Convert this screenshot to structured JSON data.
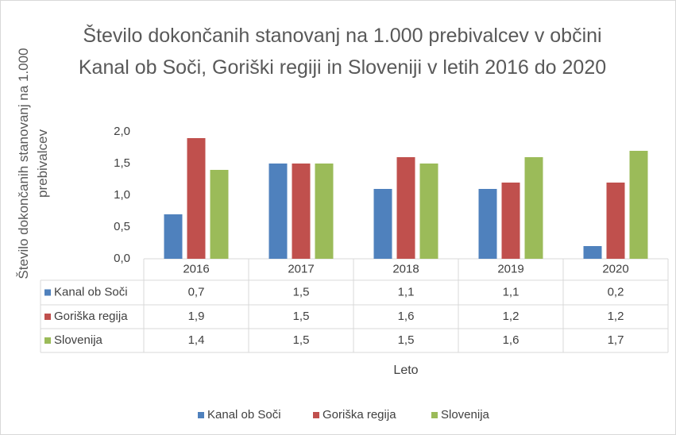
{
  "chart_data": {
    "type": "bar",
    "title": "Število dokončanih stanovanj na 1.000 prebivalcev v občini Kanal ob Soči, Goriški regiji in Sloveniji v letih 2016 do 2020",
    "y_label": "Število dokončanih stanovanj na 1.000 prebivalcev",
    "x_label": "Leto",
    "categories": [
      "2016",
      "2017",
      "2018",
      "2019",
      "2020"
    ],
    "series": [
      {
        "name": "Kanal ob Soči",
        "color": "#4f81bd",
        "values": [
          0.7,
          1.5,
          1.1,
          1.1,
          0.2
        ],
        "value_labels": [
          "0,7",
          "1,5",
          "1,1",
          "1,1",
          "0,2"
        ]
      },
      {
        "name": "Goriška regija",
        "color": "#c0504d",
        "values": [
          1.9,
          1.5,
          1.6,
          1.2,
          1.2
        ],
        "value_labels": [
          "1,9",
          "1,5",
          "1,6",
          "1,2",
          "1,2"
        ]
      },
      {
        "name": "Slovenija",
        "color": "#9bbb59",
        "values": [
          1.4,
          1.5,
          1.5,
          1.6,
          1.7
        ],
        "value_labels": [
          "1,4",
          "1,5",
          "1,5",
          "1,6",
          "1,7"
        ]
      }
    ],
    "ylim": [
      0,
      2
    ],
    "yticks": [
      {
        "value": 0,
        "label": "0,0"
      },
      {
        "value": 0.5,
        "label": "0,5"
      },
      {
        "value": 1,
        "label": "1,0"
      },
      {
        "value": 1.5,
        "label": "1,5"
      },
      {
        "value": 2,
        "label": "2,0"
      }
    ],
    "grid": false,
    "legend": "bottom"
  }
}
